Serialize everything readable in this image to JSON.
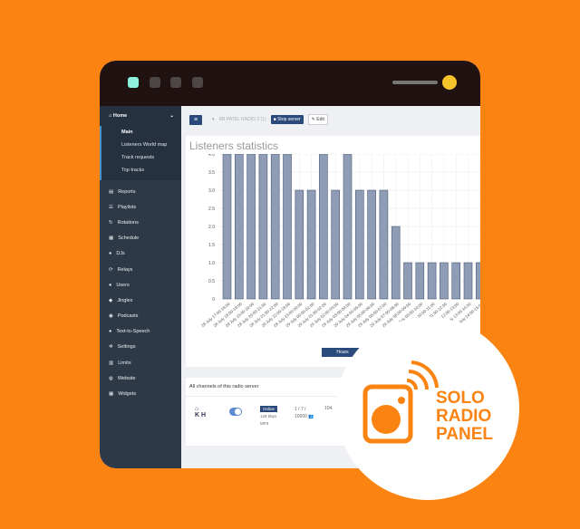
{
  "window": {
    "dot_colors": [
      "#8ff0de",
      "#4d4646",
      "#4d4646",
      "#4d4646"
    ]
  },
  "sidebar": {
    "home": "Home",
    "home_sub": [
      {
        "label": "Main",
        "active": true
      },
      {
        "label": "Listeners World map"
      },
      {
        "label": "Track requests"
      },
      {
        "label": "Top tracks"
      }
    ],
    "items": [
      {
        "label": "Reports",
        "icon": "chart-icon"
      },
      {
        "label": "Playlists",
        "icon": "list-icon"
      },
      {
        "label": "Rotations",
        "icon": "rotate-icon"
      },
      {
        "label": "Schedule",
        "icon": "calendar-icon"
      },
      {
        "label": "DJs",
        "icon": "user-icon"
      },
      {
        "label": "Relays",
        "icon": "refresh-icon"
      },
      {
        "label": "Users",
        "icon": "users-icon"
      },
      {
        "label": "Jingles",
        "icon": "bell-icon"
      },
      {
        "label": "Podcasts",
        "icon": "podcast-icon"
      },
      {
        "label": "Text-to-Speech",
        "icon": "mic-icon"
      },
      {
        "label": "Settings",
        "icon": "gear-icon"
      },
      {
        "label": "Limits",
        "icon": "bars-icon"
      },
      {
        "label": "Website",
        "icon": "globe-icon"
      },
      {
        "label": "Widgets",
        "icon": "grid-icon"
      }
    ]
  },
  "toolbar": {
    "server_name": "RB PATEL RADIO 2 (1)",
    "stop_label": "Stop server",
    "edit_label": "Edit"
  },
  "stats": {
    "title": "Listeners statistics",
    "hours_button": "Hours"
  },
  "chart_data": {
    "type": "bar",
    "ylim": [
      0,
      4
    ],
    "yticks": [
      "0",
      "0.5",
      "1.0",
      "1.5",
      "2.0",
      "2.5",
      "3.0",
      "3.5",
      "4.0"
    ],
    "grid": true,
    "categories": [
      "28 July 17:00-18:00",
      "28 July 18:00-19:00",
      "28 July 19:00-20:00",
      "28 July 20:00-21:00",
      "28 July 21:00-22:00",
      "28 July 22:00-23:00",
      "28 July 23:00-00:00",
      "29 July 00:00-01:00",
      "29 July 01:00-02:00",
      "29 July 02:00-03:00",
      "29 July 03:00-04:00",
      "29 July 04:00-05:00",
      "29 July 05:00-06:00",
      "29 July 06:00-07:00",
      "29 July 07:00-08:00",
      "29 July 08:00-09:00",
      "29 July 09:00-10:00",
      "29 July 10:00-11:00",
      "29 July 11:00-12:00",
      "29 July 12:00-13:00",
      "29 July 13:00-14:00",
      "29 July 14:00-15:00"
    ],
    "values": [
      4,
      4,
      4,
      4,
      4,
      4,
      3,
      3,
      4,
      3,
      4,
      3,
      3,
      3,
      2,
      1,
      1,
      1,
      1,
      1,
      1,
      1
    ],
    "color": "#8e9cb5"
  },
  "channels": {
    "title": "All channels of this radio server",
    "row": {
      "status": "Online",
      "bitrate": "128 kbps",
      "format": "MP3",
      "listeners": "1 / 7 /",
      "max": "10000",
      "freq": "104."
    }
  },
  "logo": {
    "lines": [
      "SOLO",
      "RADIO",
      "PANEL"
    ],
    "color": "#fb8311"
  }
}
